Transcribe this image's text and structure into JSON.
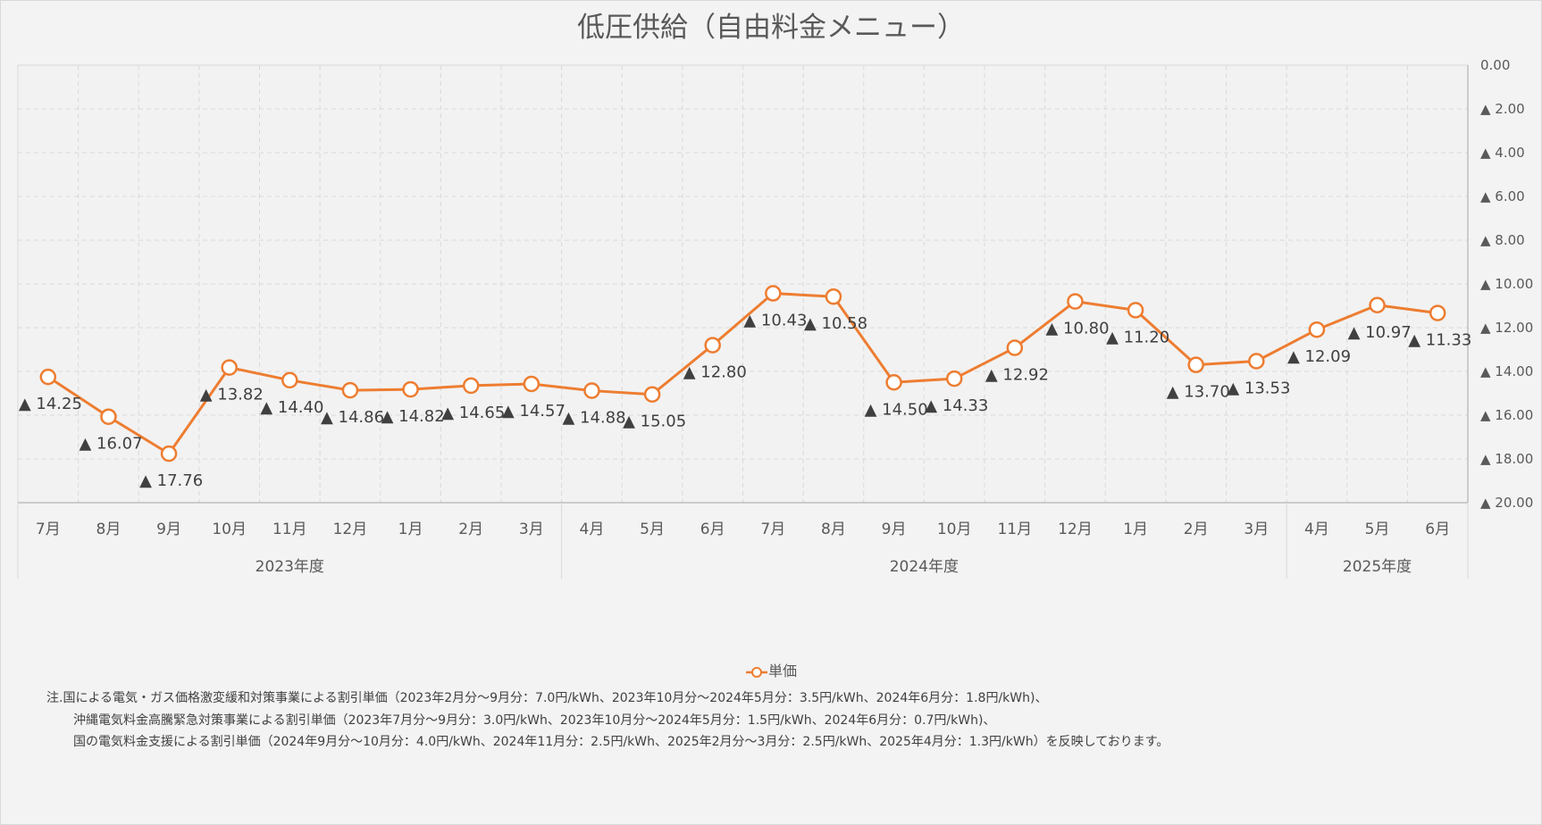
{
  "chart_data": {
    "type": "line",
    "title": "低圧供給（自由料金メニュー）",
    "categories": [
      "7月",
      "8月",
      "9月",
      "10月",
      "11月",
      "12月",
      "1月",
      "2月",
      "3月",
      "4月",
      "5月",
      "6月",
      "7月",
      "8月",
      "9月",
      "10月",
      "11月",
      "12月",
      "1月",
      "2月",
      "3月",
      "4月",
      "5月",
      "6月"
    ],
    "fiscal_years": [
      {
        "label": "2023年度",
        "start": 0,
        "end": 8
      },
      {
        "label": "2024年度",
        "start": 9,
        "end": 20
      },
      {
        "label": "2025年度",
        "start": 21,
        "end": 23
      }
    ],
    "series": [
      {
        "name": "単価",
        "color": "#ed7d31",
        "values": [
          14.25,
          16.07,
          17.76,
          13.82,
          14.4,
          14.86,
          14.82,
          14.65,
          14.57,
          14.88,
          15.05,
          12.8,
          10.43,
          10.58,
          14.5,
          14.33,
          12.92,
          10.8,
          11.2,
          13.7,
          13.53,
          12.09,
          10.97,
          11.33
        ]
      }
    ],
    "data_labels": [
      "▲ 14.25",
      "▲ 16.07",
      "▲ 17.76",
      "▲ 13.82",
      "▲ 14.40",
      "▲ 14.86",
      "▲ 14.82",
      "▲ 14.65",
      "▲ 14.57",
      "▲ 14.88",
      "▲ 15.05",
      "▲ 12.80",
      "▲ 10.43",
      "▲ 10.58",
      "▲ 14.50",
      "▲ 14.33",
      "▲ 12.92",
      "▲ 10.80",
      "▲ 11.20",
      "▲ 13.70",
      "▲ 13.53",
      "▲ 12.09",
      "▲ 10.97",
      "▲ 11.33"
    ],
    "y_axis": {
      "position": "right",
      "inverted": true,
      "ylim": [
        0,
        20
      ],
      "ticks": [
        0,
        2,
        4,
        6,
        8,
        10,
        12,
        14,
        16,
        18,
        20
      ],
      "tick_labels": [
        "0.00",
        "▲ 2.00",
        "▲ 4.00",
        "▲ 6.00",
        "▲ 8.00",
        "▲ 10.00",
        "▲ 12.00",
        "▲ 14.00",
        "▲ 16.00",
        "▲ 18.00",
        "▲ 20.00"
      ]
    },
    "grid": true,
    "legend": "bottom"
  },
  "legend": {
    "label": "単価"
  },
  "notes": [
    "注.国による電気・ガス価格激変緩和対策事業による割引単価（2023年2月分～9月分：7.0円/kWh、2023年10月分～2024年5月分：3.5円/kWh、2024年6月分：1.8円/kWh)、",
    "沖縄電気料金高騰緊急対策事業による割引単価（2023年7月分～9月分：3.0円/kWh、2023年10月分～2024年5月分：1.5円/kWh、2024年6月分：0.7円/kWh)、",
    "国の電気料金支援による割引単価（2024年9月分～10月分：4.0円/kWh、2024年11月分：2.5円/kWh、2025年2月分～3月分：2.5円/kWh、2025年4月分：1.3円/kWh）を反映しております。"
  ]
}
